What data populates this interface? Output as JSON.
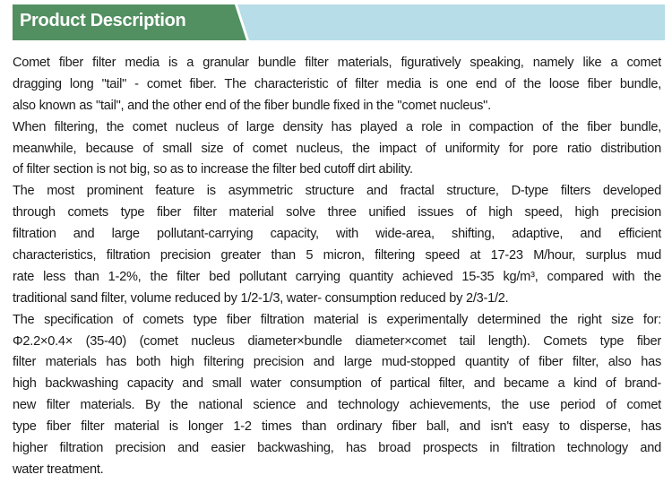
{
  "header": {
    "title": "Product Description",
    "colors": {
      "green": "#528f61",
      "blue": "#b6dde8"
    }
  },
  "paragraphs": [
    [
      "Comet fiber filter media is a granular bundle filter materials, figuratively speaking, namely like a comet",
      "dragging long \"tail\" - comet fiber. The characteristic of filter media is one end of the loose fiber bundle,",
      "also known as \"tail\", and the other end of the fiber bundle fixed in the \"comet nucleus\"."
    ],
    [
      "When filtering, the comet nucleus of large density  has played a role in compaction of the fiber bundle,",
      "meanwhile, because of small size of comet nucleus, the impact of uniformity for pore ratio distribution",
      "of filter section is not big, so as to increase the filter bed cutoff dirt ability."
    ],
    [
      "The most prominent feature is asymmetric structure and fractal structure, D-type filters developed",
      "through comets type fiber filter material  solve  three unified issues of high speed, high precision",
      "filtration and  large pollutant-carrying capacity, with wide-area, shifting, adaptive, and efficient",
      "characteristics, filtration precision greater than 5 micron, filtering speed at 17-23 M/hour, surplus mud",
      "rate less than 1-2%, the filter bed pollutant carrying quantity achieved 15-35 kg/m³, compared with the",
      "traditional sand filter, volume reduced by 1/2-1/3,  water- consumption reduced by 2/3-1/2."
    ],
    [
      "The specification of comets type fiber filtration material is experimentally determined the right size for:",
      "Φ2.2×0.4× (35-40) (comet nucleus diameter×bundle diameter×comet tail length). Comets type fiber",
      "filter materials has both high filtering precision and large mud-stopped quantity of fiber filter, also has",
      "high backwashing capacity and small water consumption of partical filter, and became a kind of brand-",
      "new filter materials. By the national science and technology achievements, the use period of comet",
      "type fiber filter material is longer 1-2 times  than ordinary fiber ball, and isn't easy to disperse, has",
      "higher filtration precision and easier backwashing, has broad prospects in filtration technology and",
      "water treatment."
    ]
  ]
}
